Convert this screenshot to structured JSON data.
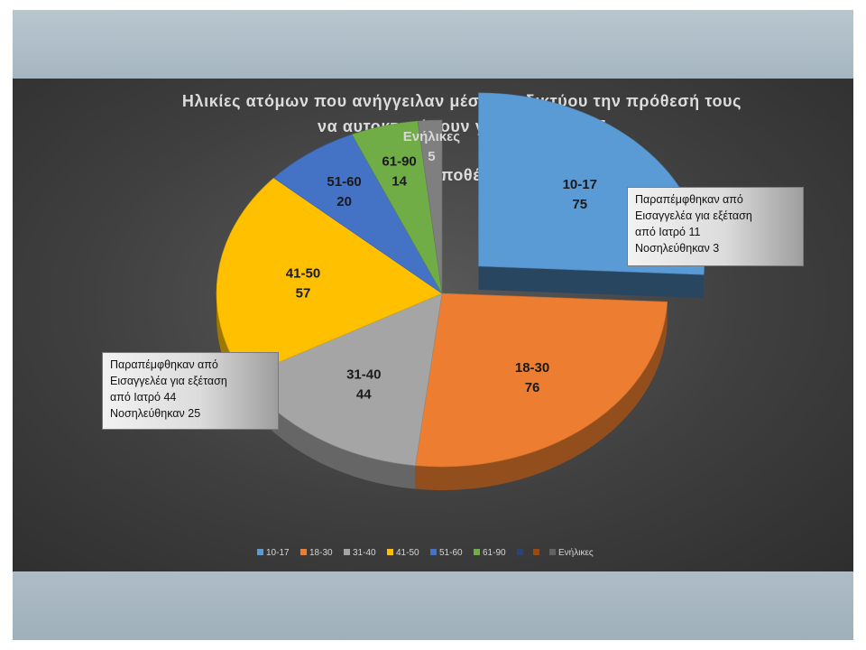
{
  "chart_data": {
    "type": "pie",
    "title_line1": "Ηλικίες ατόμων που ανήγγειλαν μέσω διαδικτύου την πρόθεσή τους",
    "title_line2": "να αυτοκτονήσουν για το έτος 2017",
    "subtitle": "Σύνολο υποθέσεων 345",
    "slices": [
      {
        "label": "10-17",
        "value": 75,
        "color": "#5b9bd5"
      },
      {
        "label": "18-30",
        "value": 76,
        "color": "#ed7d31"
      },
      {
        "label": "31-40",
        "value": 44,
        "color": "#a5a5a5"
      },
      {
        "label": "41-50",
        "value": 57,
        "color": "#ffc000"
      },
      {
        "label": "51-60",
        "value": 20,
        "color": "#4472c4"
      },
      {
        "label": "61-90",
        "value": 14,
        "color": "#70ad47"
      },
      {
        "label": "Ενήλικες",
        "value": 5,
        "color": "#7f7f7f"
      }
    ],
    "legend": [
      {
        "label": "10-17",
        "color": "#5b9bd5"
      },
      {
        "label": "18-30",
        "color": "#ed7d31"
      },
      {
        "label": "31-40",
        "color": "#a5a5a5"
      },
      {
        "label": "41-50",
        "color": "#ffc000"
      },
      {
        "label": "51-60",
        "color": "#4472c4"
      },
      {
        "label": "61-90",
        "color": "#70ad47"
      },
      {
        "label": "",
        "color": "#264478"
      },
      {
        "label": "",
        "color": "#9e480e"
      },
      {
        "label": "Ενήλικες",
        "color": "#636363"
      }
    ],
    "legend_position": "bottom",
    "annotations": [
      {
        "lines": [
          "Παραπέμφθηκαν από",
          "Εισαγγελέα για εξέταση",
          "από Ιατρό 11",
          "Νοσηλεύθηκαν 3"
        ]
      },
      {
        "lines": [
          "Παραπέμφθηκαν από",
          "Εισαγγελέα για εξέταση",
          "από Ιατρό 44",
          "Νοσηλεύθηκαν 25"
        ]
      }
    ]
  }
}
